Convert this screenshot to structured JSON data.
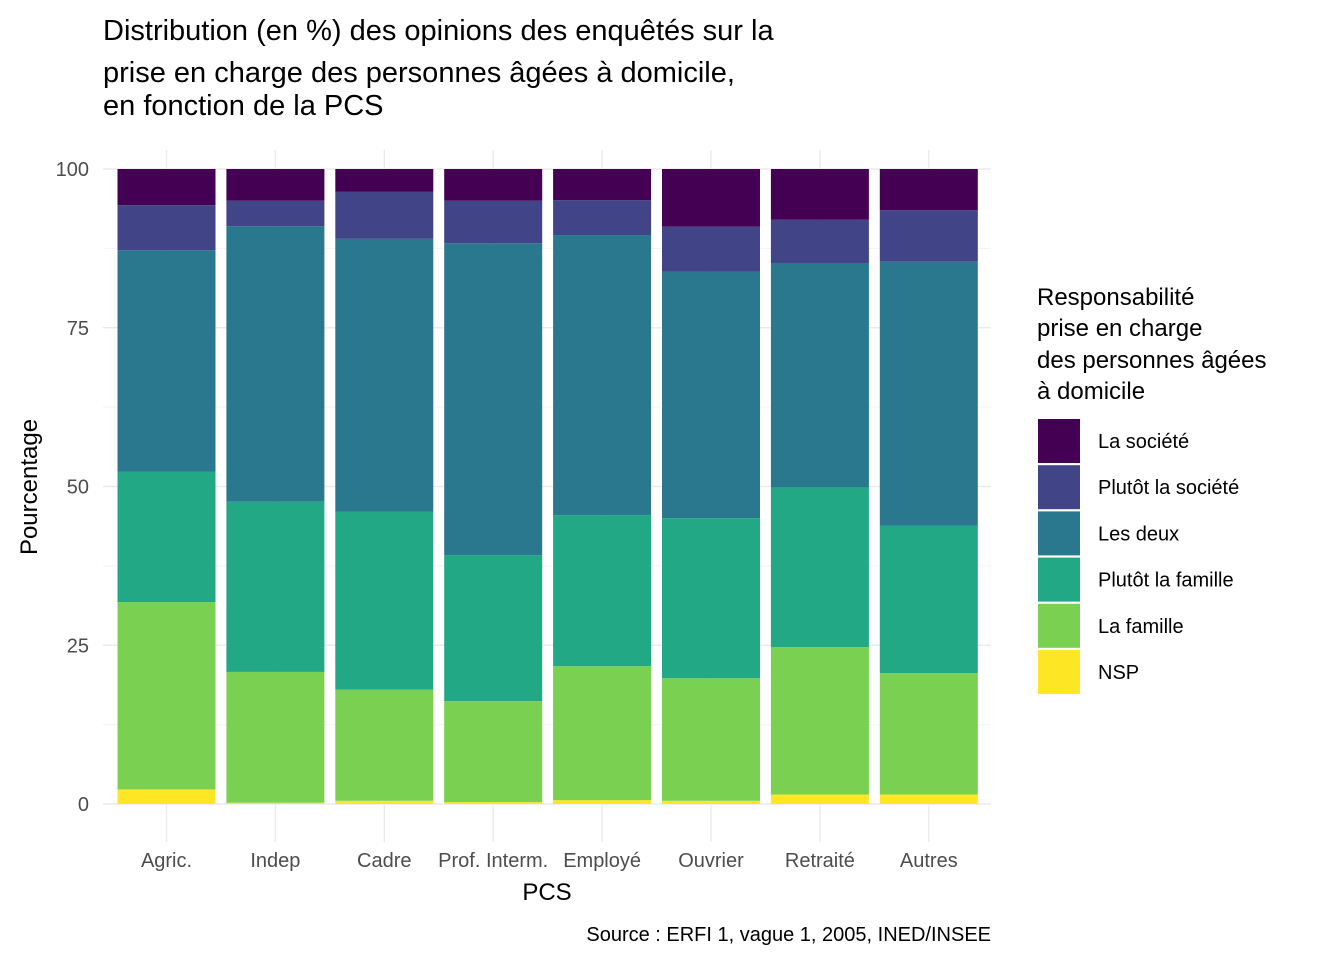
{
  "chart_data": {
    "type": "bar",
    "stacked": true,
    "title": [
      "Distribution (en %) des opinions des enquêtés sur la",
      "prise en charge des personnes âgées à domicile,",
      "en fonction de la PCS"
    ],
    "xlabel": "PCS",
    "ylabel": "Pourcentage",
    "caption": "Source : ERFI 1, vague 1, 2005, INED/INSEE",
    "ylim": [
      0,
      100
    ],
    "yticks": [
      0,
      25,
      50,
      75,
      100
    ],
    "grid": true,
    "categories": [
      "Agric.",
      "Indep",
      "Cadre",
      "Prof. Interm.",
      "Employé",
      "Ouvrier",
      "Retraité",
      "Autres"
    ],
    "legend": {
      "title": [
        "Responsabilité",
        "prise en charge",
        "des personnes âgées",
        "à domicile"
      ],
      "position": "right"
    },
    "series": [
      {
        "name": "La société",
        "color": "#440154",
        "values": [
          5.7,
          5.0,
          3.6,
          5.0,
          4.9,
          9.1,
          8.0,
          6.5
        ]
      },
      {
        "name": "Plutôt la société",
        "color": "#414487",
        "values": [
          7.1,
          4.0,
          7.4,
          6.7,
          5.5,
          7.1,
          6.8,
          8.1
        ]
      },
      {
        "name": "Les deux",
        "color": "#2A788E",
        "values": [
          34.9,
          43.4,
          43.0,
          49.1,
          44.1,
          38.8,
          35.4,
          41.6
        ]
      },
      {
        "name": "Plutôt la famille",
        "color": "#22A884",
        "values": [
          20.5,
          26.8,
          28.0,
          23.0,
          23.8,
          25.2,
          25.1,
          23.2
        ]
      },
      {
        "name": "La famille",
        "color": "#7AD151",
        "values": [
          29.5,
          20.6,
          17.5,
          15.9,
          21.1,
          19.3,
          23.2,
          19.1
        ]
      },
      {
        "name": "NSP",
        "color": "#FDE725",
        "values": [
          2.3,
          0.2,
          0.5,
          0.3,
          0.6,
          0.5,
          1.5,
          1.5
        ]
      }
    ]
  }
}
